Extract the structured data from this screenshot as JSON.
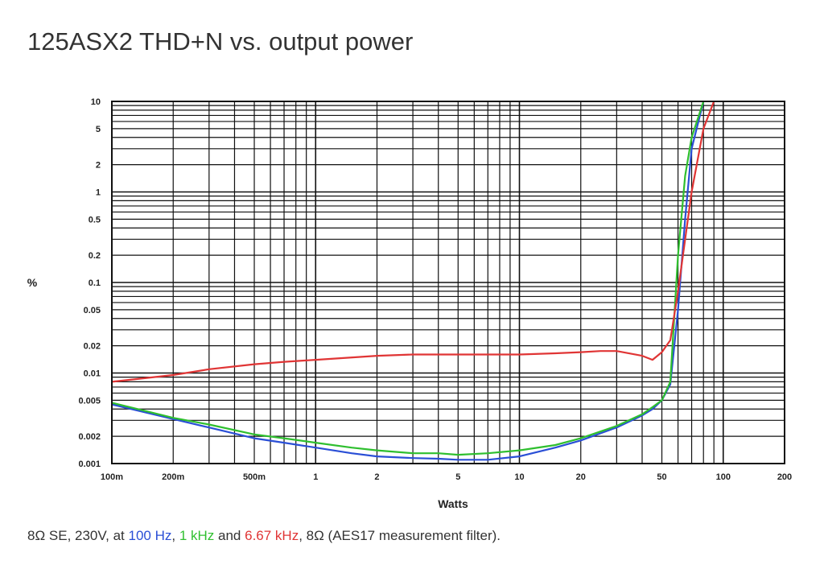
{
  "title": "125ASX2 THD+N vs. output power",
  "caption": {
    "prefix": "8Ω  SE, 230V, at ",
    "part1": "100 Hz",
    "sep1": ", ",
    "part2": "1 kHz",
    "sep2": " and ",
    "part3": "6.67 kHz",
    "suffix": ", 8Ω (AES17 measurement filter).",
    "colors": {
      "part1": "#2a4fd6",
      "part2": "#2fbf2f",
      "part3": "#e03535"
    }
  },
  "chart_data": {
    "type": "line",
    "title": "125ASX2 THD+N vs. output power",
    "xlabel": "Watts",
    "ylabel": "%",
    "xscale": "log",
    "yscale": "log",
    "xlim": [
      0.1,
      200
    ],
    "ylim": [
      0.001,
      10
    ],
    "grid": true,
    "xticks": [
      {
        "value": 0.1,
        "label": "100m"
      },
      {
        "value": 0.2,
        "label": "200m"
      },
      {
        "value": 0.5,
        "label": "500m"
      },
      {
        "value": 1,
        "label": "1"
      },
      {
        "value": 2,
        "label": "2"
      },
      {
        "value": 5,
        "label": "5"
      },
      {
        "value": 10,
        "label": "10"
      },
      {
        "value": 20,
        "label": "20"
      },
      {
        "value": 50,
        "label": "50"
      },
      {
        "value": 100,
        "label": "100"
      },
      {
        "value": 200,
        "label": "200"
      }
    ],
    "yticks": [
      {
        "value": 10,
        "label": "10"
      },
      {
        "value": 5,
        "label": "5"
      },
      {
        "value": 2,
        "label": "2"
      },
      {
        "value": 1,
        "label": "1"
      },
      {
        "value": 0.5,
        "label": "0.5"
      },
      {
        "value": 0.2,
        "label": "0.2"
      },
      {
        "value": 0.1,
        "label": "0.1"
      },
      {
        "value": 0.05,
        "label": "0.05"
      },
      {
        "value": 0.02,
        "label": "0.02"
      },
      {
        "value": 0.01,
        "label": "0.01"
      },
      {
        "value": 0.005,
        "label": "0.005"
      },
      {
        "value": 0.002,
        "label": "0.002"
      },
      {
        "value": 0.001,
        "label": "0.001"
      }
    ],
    "series": [
      {
        "color": "#2a4fd6",
        "x": [
          0.1,
          0.2,
          0.3,
          0.5,
          0.7,
          1,
          1.5,
          2,
          3,
          4,
          5,
          7,
          10,
          15,
          20,
          30,
          40,
          45,
          50,
          55,
          60,
          65,
          70,
          80
        ],
        "y": [
          0.0045,
          0.0031,
          0.0025,
          0.0019,
          0.0017,
          0.0015,
          0.0013,
          0.0012,
          0.00115,
          0.00113,
          0.0011,
          0.0011,
          0.0012,
          0.0015,
          0.0018,
          0.0025,
          0.0034,
          0.004,
          0.005,
          0.0075,
          0.05,
          0.5,
          3,
          10
        ]
      },
      {
        "color": "#2fbf2f",
        "x": [
          0.1,
          0.2,
          0.3,
          0.5,
          0.7,
          1,
          1.5,
          2,
          3,
          4,
          5,
          7,
          10,
          15,
          20,
          30,
          40,
          45,
          50,
          55,
          60,
          65,
          70,
          80
        ],
        "y": [
          0.0047,
          0.0032,
          0.0027,
          0.0021,
          0.0019,
          0.0017,
          0.0015,
          0.0014,
          0.0013,
          0.0013,
          0.00125,
          0.0013,
          0.0014,
          0.0016,
          0.0019,
          0.0026,
          0.0035,
          0.0042,
          0.005,
          0.008,
          0.2,
          1.5,
          4,
          10
        ]
      },
      {
        "color": "#e03535",
        "x": [
          0.1,
          0.2,
          0.3,
          0.5,
          0.7,
          1,
          2,
          3,
          5,
          10,
          15,
          20,
          25,
          30,
          40,
          45,
          50,
          55,
          60,
          70,
          80,
          90
        ],
        "y": [
          0.008,
          0.0095,
          0.011,
          0.0125,
          0.0133,
          0.014,
          0.0155,
          0.016,
          0.016,
          0.016,
          0.0165,
          0.017,
          0.0175,
          0.0175,
          0.0155,
          0.014,
          0.017,
          0.023,
          0.08,
          1,
          5,
          10
        ]
      }
    ]
  }
}
